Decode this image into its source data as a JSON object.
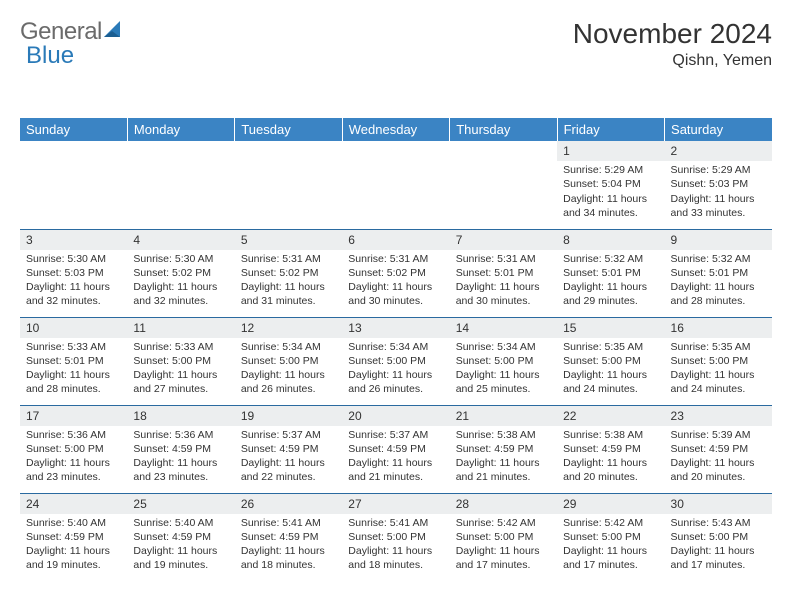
{
  "brand": {
    "part1": "General",
    "part2": "Blue"
  },
  "title": "November 2024",
  "location": "Qishn, Yemen",
  "colors": {
    "header_bg": "#3b84c4",
    "header_text": "#ffffff",
    "row_border": "#2a6aa0",
    "daynum_bg": "#eceeef",
    "text": "#333333",
    "logo_gray": "#6b6b6b",
    "logo_blue": "#2a7ab8"
  },
  "columns": [
    "Sunday",
    "Monday",
    "Tuesday",
    "Wednesday",
    "Thursday",
    "Friday",
    "Saturday"
  ],
  "weeks": [
    [
      {
        "n": "",
        "sr": "",
        "ss": "",
        "dl": ""
      },
      {
        "n": "",
        "sr": "",
        "ss": "",
        "dl": ""
      },
      {
        "n": "",
        "sr": "",
        "ss": "",
        "dl": ""
      },
      {
        "n": "",
        "sr": "",
        "ss": "",
        "dl": ""
      },
      {
        "n": "",
        "sr": "",
        "ss": "",
        "dl": ""
      },
      {
        "n": "1",
        "sr": "Sunrise: 5:29 AM",
        "ss": "Sunset: 5:04 PM",
        "dl": "Daylight: 11 hours and 34 minutes."
      },
      {
        "n": "2",
        "sr": "Sunrise: 5:29 AM",
        "ss": "Sunset: 5:03 PM",
        "dl": "Daylight: 11 hours and 33 minutes."
      }
    ],
    [
      {
        "n": "3",
        "sr": "Sunrise: 5:30 AM",
        "ss": "Sunset: 5:03 PM",
        "dl": "Daylight: 11 hours and 32 minutes."
      },
      {
        "n": "4",
        "sr": "Sunrise: 5:30 AM",
        "ss": "Sunset: 5:02 PM",
        "dl": "Daylight: 11 hours and 32 minutes."
      },
      {
        "n": "5",
        "sr": "Sunrise: 5:31 AM",
        "ss": "Sunset: 5:02 PM",
        "dl": "Daylight: 11 hours and 31 minutes."
      },
      {
        "n": "6",
        "sr": "Sunrise: 5:31 AM",
        "ss": "Sunset: 5:02 PM",
        "dl": "Daylight: 11 hours and 30 minutes."
      },
      {
        "n": "7",
        "sr": "Sunrise: 5:31 AM",
        "ss": "Sunset: 5:01 PM",
        "dl": "Daylight: 11 hours and 30 minutes."
      },
      {
        "n": "8",
        "sr": "Sunrise: 5:32 AM",
        "ss": "Sunset: 5:01 PM",
        "dl": "Daylight: 11 hours and 29 minutes."
      },
      {
        "n": "9",
        "sr": "Sunrise: 5:32 AM",
        "ss": "Sunset: 5:01 PM",
        "dl": "Daylight: 11 hours and 28 minutes."
      }
    ],
    [
      {
        "n": "10",
        "sr": "Sunrise: 5:33 AM",
        "ss": "Sunset: 5:01 PM",
        "dl": "Daylight: 11 hours and 28 minutes."
      },
      {
        "n": "11",
        "sr": "Sunrise: 5:33 AM",
        "ss": "Sunset: 5:00 PM",
        "dl": "Daylight: 11 hours and 27 minutes."
      },
      {
        "n": "12",
        "sr": "Sunrise: 5:34 AM",
        "ss": "Sunset: 5:00 PM",
        "dl": "Daylight: 11 hours and 26 minutes."
      },
      {
        "n": "13",
        "sr": "Sunrise: 5:34 AM",
        "ss": "Sunset: 5:00 PM",
        "dl": "Daylight: 11 hours and 26 minutes."
      },
      {
        "n": "14",
        "sr": "Sunrise: 5:34 AM",
        "ss": "Sunset: 5:00 PM",
        "dl": "Daylight: 11 hours and 25 minutes."
      },
      {
        "n": "15",
        "sr": "Sunrise: 5:35 AM",
        "ss": "Sunset: 5:00 PM",
        "dl": "Daylight: 11 hours and 24 minutes."
      },
      {
        "n": "16",
        "sr": "Sunrise: 5:35 AM",
        "ss": "Sunset: 5:00 PM",
        "dl": "Daylight: 11 hours and 24 minutes."
      }
    ],
    [
      {
        "n": "17",
        "sr": "Sunrise: 5:36 AM",
        "ss": "Sunset: 5:00 PM",
        "dl": "Daylight: 11 hours and 23 minutes."
      },
      {
        "n": "18",
        "sr": "Sunrise: 5:36 AM",
        "ss": "Sunset: 4:59 PM",
        "dl": "Daylight: 11 hours and 23 minutes."
      },
      {
        "n": "19",
        "sr": "Sunrise: 5:37 AM",
        "ss": "Sunset: 4:59 PM",
        "dl": "Daylight: 11 hours and 22 minutes."
      },
      {
        "n": "20",
        "sr": "Sunrise: 5:37 AM",
        "ss": "Sunset: 4:59 PM",
        "dl": "Daylight: 11 hours and 21 minutes."
      },
      {
        "n": "21",
        "sr": "Sunrise: 5:38 AM",
        "ss": "Sunset: 4:59 PM",
        "dl": "Daylight: 11 hours and 21 minutes."
      },
      {
        "n": "22",
        "sr": "Sunrise: 5:38 AM",
        "ss": "Sunset: 4:59 PM",
        "dl": "Daylight: 11 hours and 20 minutes."
      },
      {
        "n": "23",
        "sr": "Sunrise: 5:39 AM",
        "ss": "Sunset: 4:59 PM",
        "dl": "Daylight: 11 hours and 20 minutes."
      }
    ],
    [
      {
        "n": "24",
        "sr": "Sunrise: 5:40 AM",
        "ss": "Sunset: 4:59 PM",
        "dl": "Daylight: 11 hours and 19 minutes."
      },
      {
        "n": "25",
        "sr": "Sunrise: 5:40 AM",
        "ss": "Sunset: 4:59 PM",
        "dl": "Daylight: 11 hours and 19 minutes."
      },
      {
        "n": "26",
        "sr": "Sunrise: 5:41 AM",
        "ss": "Sunset: 4:59 PM",
        "dl": "Daylight: 11 hours and 18 minutes."
      },
      {
        "n": "27",
        "sr": "Sunrise: 5:41 AM",
        "ss": "Sunset: 5:00 PM",
        "dl": "Daylight: 11 hours and 18 minutes."
      },
      {
        "n": "28",
        "sr": "Sunrise: 5:42 AM",
        "ss": "Sunset: 5:00 PM",
        "dl": "Daylight: 11 hours and 17 minutes."
      },
      {
        "n": "29",
        "sr": "Sunrise: 5:42 AM",
        "ss": "Sunset: 5:00 PM",
        "dl": "Daylight: 11 hours and 17 minutes."
      },
      {
        "n": "30",
        "sr": "Sunrise: 5:43 AM",
        "ss": "Sunset: 5:00 PM",
        "dl": "Daylight: 11 hours and 17 minutes."
      }
    ]
  ]
}
